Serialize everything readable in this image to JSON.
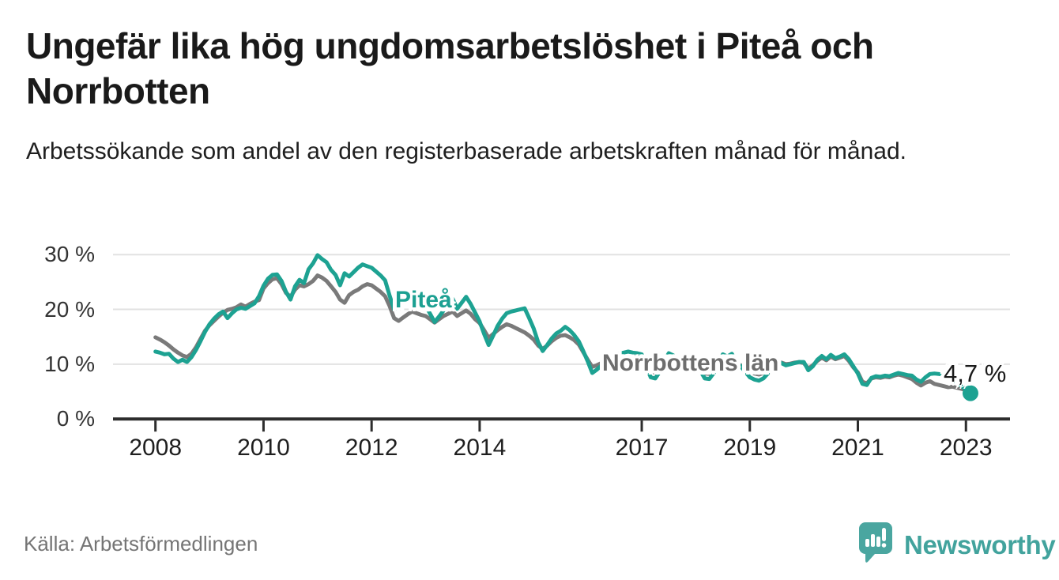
{
  "title": "Ungefär lika hög ungdomsarbetslöshet i Piteå och Norrbotten",
  "subtitle": "Arbetssökande som andel av den registerbaserade arbetskraften månad för månad.",
  "source": "Källa: Arbetsförmedlingen",
  "branding": {
    "name": "Newsworthy",
    "color": "#42a39d"
  },
  "annotation": {
    "last_value_label": "4,7 %",
    "series": "Piteå"
  },
  "series_labels": {
    "pitea": "Piteå",
    "norrbotten": "Norrbottens län"
  },
  "colors": {
    "pitea_line": "#1da292",
    "norrbotten_line": "#7a7a7a",
    "gridline": "#e2e2e2",
    "axis": "#2d2d2d"
  },
  "chart_data": {
    "type": "line",
    "title": "Ungefär lika hög ungdomsarbetslöshet i Piteå och Norrbotten",
    "xlabel": "",
    "ylabel": "",
    "unit": "%",
    "frequency": "monthly",
    "start": "2008-01",
    "end": "2023-02",
    "grid": "horizontal",
    "legend_position": "inline-labels",
    "ylim": [
      0,
      30
    ],
    "y_ticks": [
      {
        "value": 0,
        "label": "0 %"
      },
      {
        "value": 10,
        "label": "10 %"
      },
      {
        "value": 20,
        "label": "20 %"
      },
      {
        "value": 30,
        "label": "30 %"
      }
    ],
    "x_tick_years": [
      2008,
      2010,
      2012,
      2014,
      2017,
      2019,
      2021,
      2023
    ],
    "x_tick_labels": [
      "2008",
      "2010",
      "2012",
      "2014",
      "2017",
      "2019",
      "2021",
      "2023"
    ],
    "series": [
      {
        "name": "Piteå",
        "color": "#1da292",
        "values": [
          12.3,
          12.1,
          11.8,
          11.9,
          11.0,
          10.4,
          10.8,
          10.4,
          11.3,
          12.6,
          14.2,
          15.9,
          17.3,
          18.3,
          19.1,
          19.6,
          18.4,
          19.3,
          20.0,
          20.3,
          20.1,
          20.6,
          21.1,
          22.4,
          24.3,
          25.6,
          26.3,
          26.4,
          25.2,
          23.2,
          21.8,
          24.2,
          25.4,
          24.8,
          27.3,
          28.4,
          29.9,
          29.2,
          28.6,
          27.2,
          26.3,
          24.4,
          26.6,
          26.0,
          26.8,
          27.6,
          28.2,
          27.9,
          27.6,
          26.9,
          26.2,
          25.3,
          22.5,
          20.0,
          20.8,
          21.4,
          21.9,
          22.1,
          21.8,
          21.3,
          20.7,
          19.2,
          17.7,
          18.7,
          19.8,
          21.0,
          22.0,
          20.1,
          21.2,
          22.3,
          21.0,
          19.4,
          17.8,
          15.5,
          13.5,
          15.2,
          17.0,
          18.3,
          19.3,
          19.6,
          19.8,
          20.0,
          20.2,
          18.4,
          16.5,
          14.0,
          12.4,
          13.5,
          14.7,
          15.6,
          16.1,
          16.8,
          16.2,
          15.3,
          14.2,
          12.4,
          10.5,
          8.4,
          9.0,
          9.7,
          10.4,
          10.9,
          11.4,
          11.9,
          12.1,
          12.3,
          12.1,
          12.0,
          11.8,
          9.6,
          7.6,
          7.4,
          8.6,
          10.6,
          12.0,
          11.6,
          10.6,
          10.0,
          10.4,
          11.0,
          10.8,
          8.8,
          7.4,
          7.3,
          8.4,
          10.2,
          11.8,
          11.4,
          11.9,
          10.6,
          9.6,
          8.6,
          7.6,
          7.2,
          7.0,
          7.4,
          8.3,
          9.2,
          10.0,
          10.2,
          9.8,
          10.0,
          10.2,
          10.4,
          10.4,
          8.9,
          9.6,
          10.8,
          11.5,
          10.9,
          11.7,
          11.1,
          11.4,
          11.8,
          10.9,
          9.6,
          8.3,
          6.4,
          6.2,
          7.5,
          7.8,
          7.7,
          7.9,
          7.8,
          8.1,
          8.4,
          8.2,
          8.0,
          7.9,
          7.2,
          6.8,
          7.6,
          8.2,
          8.3,
          8.2,
          8.1,
          7.8,
          7.2,
          6.6,
          6.0,
          5.4,
          4.7
        ]
      },
      {
        "name": "Norrbottens län",
        "color": "#7a7a7a",
        "values": [
          14.9,
          14.5,
          14.0,
          13.4,
          12.7,
          12.1,
          11.6,
          11.3,
          11.9,
          13.1,
          14.6,
          16.1,
          17.1,
          17.9,
          18.7,
          19.4,
          19.9,
          20.1,
          20.4,
          20.9,
          20.5,
          21.0,
          21.4,
          21.7,
          23.8,
          24.8,
          25.5,
          25.7,
          24.6,
          23.0,
          22.3,
          23.6,
          24.4,
          24.2,
          24.6,
          25.2,
          26.2,
          25.8,
          25.2,
          24.2,
          23.2,
          21.8,
          21.2,
          22.6,
          23.2,
          23.6,
          24.2,
          24.6,
          24.4,
          23.8,
          23.2,
          22.4,
          20.6,
          18.4,
          17.9,
          18.5,
          19.1,
          19.6,
          19.3,
          19.0,
          18.8,
          18.2,
          17.6,
          18.2,
          18.8,
          19.2,
          19.6,
          18.8,
          19.3,
          19.8,
          19.2,
          18.2,
          17.5,
          16.2,
          14.8,
          15.5,
          16.2,
          16.8,
          17.3,
          17.0,
          16.6,
          16.2,
          15.8,
          15.2,
          14.5,
          13.4,
          12.8,
          13.4,
          14.2,
          14.8,
          15.2,
          15.3,
          14.9,
          14.4,
          13.6,
          12.2,
          10.8,
          9.5,
          9.8,
          10.2,
          10.6,
          10.9,
          11.2,
          11.4,
          11.3,
          11.1,
          11.2,
          11.3,
          11.0,
          9.6,
          8.6,
          8.4,
          9.0,
          10.2,
          11.2,
          11.0,
          10.4,
          10.0,
          10.2,
          10.6,
          10.4,
          9.0,
          8.3,
          8.2,
          8.8,
          9.8,
          10.8,
          10.6,
          10.9,
          10.3,
          9.8,
          9.4,
          8.8,
          8.3,
          8.1,
          8.4,
          9.0,
          9.6,
          10.2,
          10.3,
          10.0,
          10.1,
          10.3,
          10.4,
          10.2,
          9.2,
          9.8,
          10.6,
          11.2,
          10.7,
          11.4,
          10.9,
          11.2,
          11.5,
          10.6,
          9.4,
          8.5,
          6.8,
          6.5,
          7.4,
          7.6,
          7.5,
          7.7,
          7.6,
          7.9,
          8.1,
          7.9,
          7.6,
          7.3,
          6.6,
          6.1,
          6.6,
          6.9,
          6.4,
          6.2,
          6.0,
          5.8,
          5.9,
          5.7,
          5.5,
          5.3,
          5.1
        ]
      }
    ],
    "annotations": [
      {
        "x": "2023-02",
        "series": "Piteå",
        "text": "4,7 %",
        "marker": "dot"
      }
    ]
  }
}
